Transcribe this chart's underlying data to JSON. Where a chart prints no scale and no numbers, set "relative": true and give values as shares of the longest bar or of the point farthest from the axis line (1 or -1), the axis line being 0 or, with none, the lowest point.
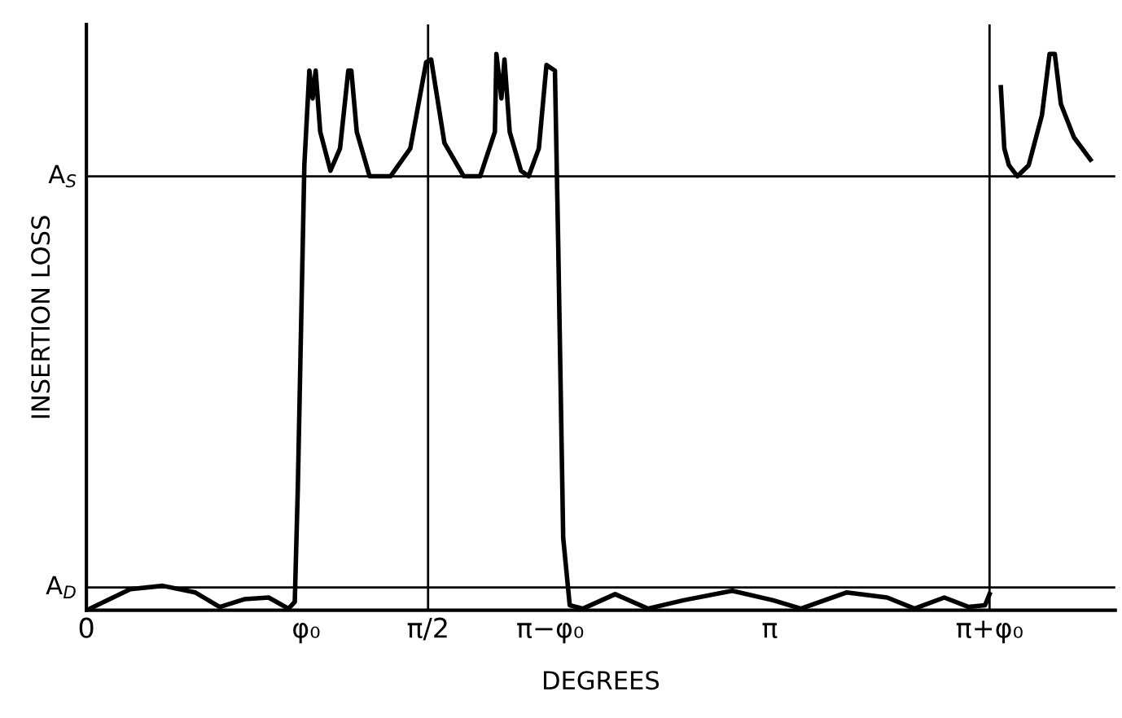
{
  "chart_data": {
    "type": "line",
    "relative": true,
    "xlabel": "DEGREES",
    "ylabel": "INSERTION LOSS",
    "xlim": [
      0,
      4.73
    ],
    "xticks": [
      0,
      {
        "value": 1.01,
        "label": "φ₀"
      },
      {
        "value": 1.5708,
        "label": "π/2"
      },
      {
        "value": 2.132,
        "label": "π−φ₀"
      },
      {
        "value": 3.1416,
        "label": "π"
      },
      {
        "value": 4.152,
        "label": "π+φ₀"
      }
    ],
    "series": [
      {
        "color": "#000000",
        "x": [
          0,
          0.202,
          0.351,
          0.501,
          0.613,
          0.726,
          0.838,
          0.929,
          0.958,
          0.972,
          1.002,
          1.025,
          1.04,
          1.054,
          1.075,
          1.122,
          1.166,
          1.204,
          1.218,
          1.243,
          1.302,
          1.398,
          1.489,
          1.562,
          1.585,
          1.646,
          1.735,
          1.81,
          1.878,
          1.885,
          1.908,
          1.922,
          1.946,
          1.998,
          2.033,
          2.08,
          2.115,
          2.154,
          2.169,
          2.192,
          2.222,
          2.283,
          2.431,
          2.581,
          2.745,
          2.969,
          3.157,
          3.285,
          3.494,
          3.681,
          3.807,
          3.944,
          4.056,
          4.131,
          4.152,
          4.18,
          4.204,
          4.22,
          4.241,
          4.28,
          4.332,
          4.393,
          4.428,
          4.452,
          4.48,
          4.54,
          4.616
        ],
        "values": [
          0,
          0.038,
          0.044,
          0.032,
          0.006,
          0.02,
          0.023,
          0.003,
          0.015,
          0.22,
          0.8,
          0.97,
          0.92,
          0.97,
          0.86,
          0.79,
          0.83,
          0.97,
          0.97,
          0.86,
          0.78,
          0.78,
          0.83,
          0.985,
          0.99,
          0.84,
          0.78,
          0.78,
          0.86,
          1.0,
          0.92,
          0.99,
          0.86,
          0.79,
          0.78,
          0.83,
          0.98,
          0.97,
          0.66,
          0.13,
          0.009,
          0.003,
          0.029,
          0.003,
          0.018,
          0.035,
          0.018,
          0.003,
          0.032,
          0.023,
          0.003,
          0.023,
          0.006,
          0.009,
          0.029,
          null,
          0.94,
          0.83,
          0.8,
          0.78,
          0.8,
          0.89,
          1.0,
          1.0,
          0.91,
          0.85,
          0.81
        ]
      }
    ],
    "ref_lines": [
      {
        "axis": "y",
        "value": 0.78,
        "label": "A$_{S}$",
        "color": "#000000"
      },
      {
        "axis": "y",
        "value": 0.041,
        "label": "A$_{D}$",
        "color": "#000000"
      },
      {
        "axis": "x",
        "value": 1.5708,
        "color": "#000000"
      },
      {
        "axis": "x",
        "value": 4.152,
        "color": "#000000"
      }
    ],
    "grid": false,
    "legend": false
  }
}
